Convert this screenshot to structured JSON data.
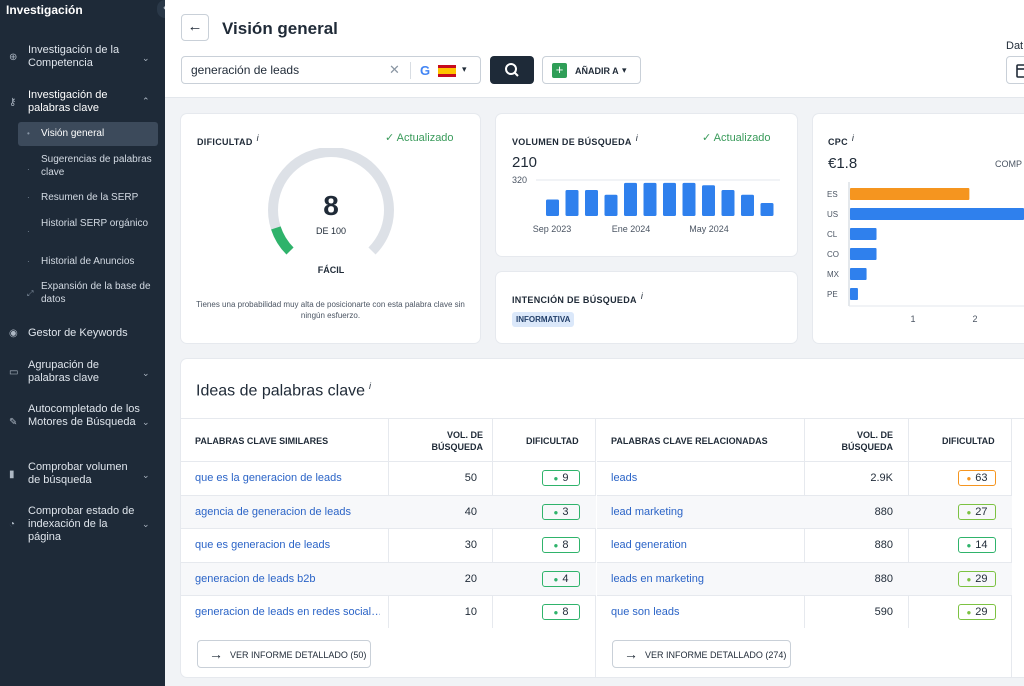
{
  "sidebar": {
    "title": "Investigación",
    "items": [
      {
        "label": "Investigación de la Competencia",
        "icon": "target-icon"
      },
      {
        "label": "Investigación de palabras clave",
        "icon": "key-icon"
      },
      {
        "label": "Gestor de Keywords",
        "icon": "circle-icon"
      },
      {
        "label": "Agrupación de palabras clave",
        "icon": "folder-icon"
      },
      {
        "label": "Autocompletado de los Motores de Búsqueda",
        "icon": "pencil-icon"
      },
      {
        "label": "Comprobar volumen de búsqueda",
        "icon": "bar-chart-icon"
      },
      {
        "label": "Comprobar estado de indexación de la página",
        "icon": "pie-icon"
      }
    ],
    "subitems": [
      {
        "label": "Visión general"
      },
      {
        "label": "Sugerencias de palabras clave"
      },
      {
        "label": "Resumen de la SERP"
      },
      {
        "label": "Historial SERP orgánico"
      },
      {
        "label": "Historial de Anuncios"
      },
      {
        "label": "Expansión de la base de datos"
      }
    ]
  },
  "header": {
    "title": "Visión general",
    "search_value": "generación de leads",
    "add_label": "AÑADIR A",
    "date_label": "Dat"
  },
  "difficulty": {
    "label": "DIFICULTAD",
    "info": "i",
    "updated": "Actualizado",
    "value": "8",
    "of": "DE 100",
    "level": "FÁCIL",
    "score": 8,
    "note": "Tienes una probabilidad muy alta de posicionarte con esta palabra clave sin ningún esfuerzo."
  },
  "volume": {
    "label": "VOLUMEN DE BÚSQUEDA",
    "info": "i",
    "updated": "Actualizado",
    "value": "210",
    "axis_max": "320",
    "x_labels": [
      "Sep 2023",
      "Ene 2024",
      "May 2024"
    ]
  },
  "intent": {
    "label": "INTENCIÓN DE BÚSQUEDA",
    "info": "i",
    "badge": "INFORMATIVA"
  },
  "cpc": {
    "label": "CPC",
    "info": "i",
    "value": "€1.8",
    "comp": "COMP",
    "x_ticks": [
      "1",
      "2"
    ]
  },
  "ideas": {
    "title": "Ideas de palabras clave",
    "info": "i",
    "similar": {
      "col_keyword": "PALABRAS CLAVE SIMILARES",
      "col_volume": "VOL. DE BÚSQUEDA",
      "col_difficulty": "DIFICULTAD",
      "rows": [
        {
          "keyword": "que es la generacion de leads",
          "volume": "50",
          "difficulty": "9"
        },
        {
          "keyword": "agencia de generacion de leads",
          "volume": "40",
          "difficulty": "3"
        },
        {
          "keyword": "que es generacion de leads",
          "volume": "30",
          "difficulty": "8"
        },
        {
          "keyword": "generacion de leads b2b",
          "volume": "20",
          "difficulty": "4"
        },
        {
          "keyword": "generacion de leads en redes social…",
          "volume": "10",
          "difficulty": "8"
        }
      ],
      "button": "VER INFORME DETALLADO (50)"
    },
    "related": {
      "col_keyword": "PALABRAS CLAVE RELACIONADAS",
      "col_volume": "VOL. DE BÚSQUEDA",
      "col_difficulty": "DIFICULTAD",
      "rows": [
        {
          "keyword": "leads",
          "volume": "2.9K",
          "difficulty": "63"
        },
        {
          "keyword": "lead marketing",
          "volume": "880",
          "difficulty": "27"
        },
        {
          "keyword": "lead generation",
          "volume": "880",
          "difficulty": "14"
        },
        {
          "keyword": "leads en marketing",
          "volume": "880",
          "difficulty": "29"
        },
        {
          "keyword": "que son leads",
          "volume": "590",
          "difficulty": "29"
        }
      ],
      "button": "VER INFORME DETALLADO (274)"
    }
  },
  "colors": {
    "sidebar_bg": "#1e2a38",
    "accent_blue": "#2f80ed",
    "accent_orange": "#f5951f",
    "easy_green": "#2fb36b",
    "link_blue": "#2b64c7"
  },
  "chart_data": [
    {
      "type": "bar",
      "categories": [
        "Sep 2023",
        "",
        "",
        "",
        "Ene 2024",
        "",
        "",
        "",
        "May 2024",
        "",
        "",
        ""
      ],
      "values": [
        70,
        110,
        110,
        90,
        140,
        140,
        140,
        140,
        130,
        110,
        90,
        55
      ],
      "ylim": [
        0,
        320
      ]
    },
    {
      "type": "bar",
      "categories": [
        "ES",
        "US",
        "CL",
        "CO",
        "MX",
        "PE"
      ],
      "values": [
        1.8,
        2.9,
        0.4,
        0.4,
        0.25,
        0.12
      ],
      "xlim": [
        0,
        2.8
      ]
    }
  ]
}
